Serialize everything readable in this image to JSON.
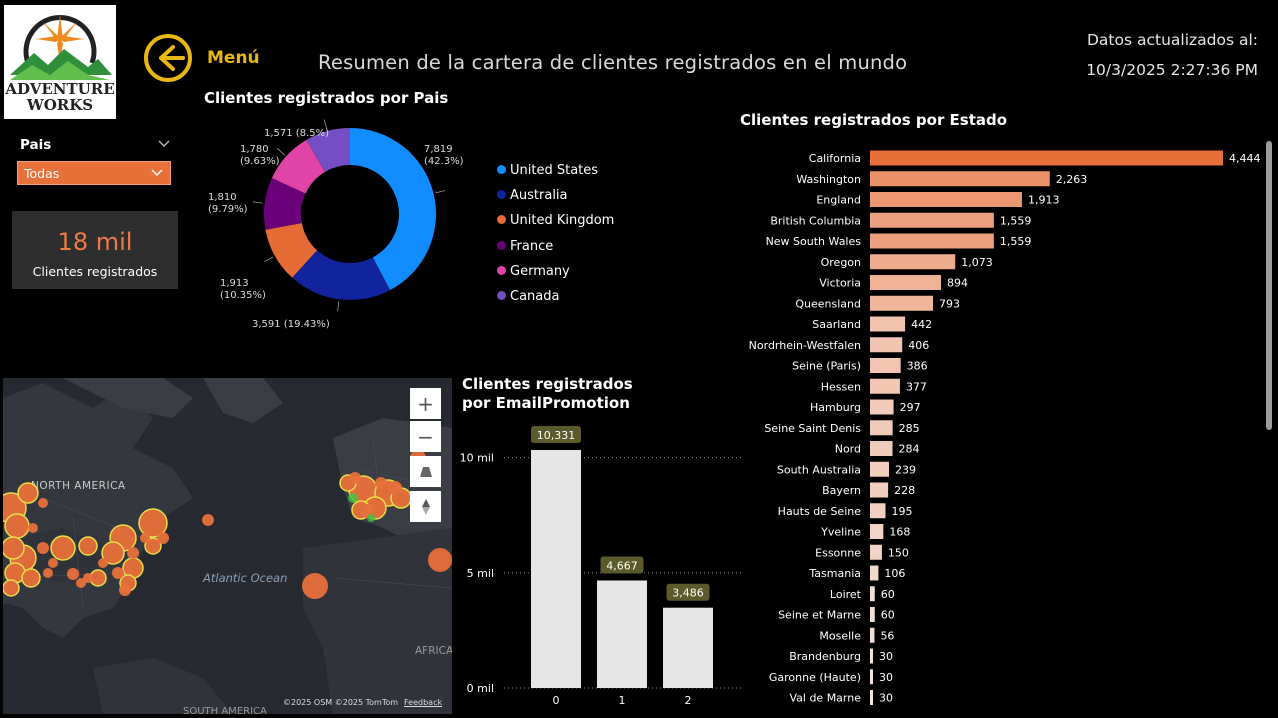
{
  "header": {
    "logo_line1": "ADVENTURE",
    "logo_line2": "WORKS",
    "menu_label": "Menú",
    "title": "Resumen de la cartera de clientes registrados en el mundo",
    "updated_label": "Datos actualizados al:",
    "updated_time": "10/3/2025 2:27:36 PM"
  },
  "filter": {
    "label": "Pais",
    "selected": "Todas",
    "accent": "#e8703a"
  },
  "kpi": {
    "value": "18 mil",
    "label": "Clientes registrados",
    "value_color": "#ef7a45"
  },
  "icons": {
    "back": "arrow-left-circle-icon",
    "dropdown": "chevron-down-icon",
    "zoom_in": "plus-icon",
    "zoom_out": "minus-icon",
    "tilt": "tilt-icon",
    "compass": "compass-icon"
  },
  "map": {
    "labels": {
      "north_america": "NORTH AMERICA",
      "atlantic": "Atlantic Ocean",
      "africa": "AFRICA",
      "south_america": "SOUTH AMERICA"
    },
    "attribution": "©2025 OSM  ©2025 TomTom",
    "feedback": "Feedback",
    "bubble_color": "#e8703a"
  },
  "chart_data": [
    {
      "type": "pie",
      "variant": "donut",
      "title": "Clientes registrados por Pais",
      "categories": [
        "United States",
        "Australia",
        "United Kingdom",
        "France",
        "Germany",
        "Canada"
      ],
      "values": [
        7819,
        3591,
        1913,
        1810,
        1780,
        1571
      ],
      "labels": [
        "7,819 (42.3%)",
        "3,591 (19.43%)",
        "1,913 (10.35%)",
        "1,810 (9.79%)",
        "1,780 (9.63%)",
        "1,571 (8.5%)"
      ],
      "colors": [
        "#118dff",
        "#12239e",
        "#e66c37",
        "#6b007b",
        "#e044a7",
        "#744ec2"
      ],
      "legend": "right"
    },
    {
      "type": "bar",
      "title": "Clientes registrados por EmailPromotion",
      "categories": [
        "0",
        "1",
        "2"
      ],
      "values": [
        10331,
        4667,
        3486
      ],
      "value_labels": [
        "10,331",
        "4,667",
        "3,486"
      ],
      "yticks": [
        "0 mil",
        "5 mil",
        "10 mil"
      ],
      "ytick_values": [
        0,
        5000,
        10000
      ],
      "ylim": [
        0,
        11000
      ],
      "bar_color": "#e6e6e6",
      "label_bg": "#5a5a2a",
      "grid": true
    },
    {
      "type": "bar",
      "orientation": "horizontal",
      "title": "Clientes registrados por Estado",
      "categories": [
        "California",
        "Washington",
        "England",
        "British Columbia",
        "New South Wales",
        "Oregon",
        "Victoria",
        "Queensland",
        "Saarland",
        "Nordrhein-Westfalen",
        "Seine (Paris)",
        "Hessen",
        "Hamburg",
        "Seine Saint Denis",
        "Nord",
        "South Australia",
        "Bayern",
        "Hauts de Seine",
        "Yveline",
        "Essonne",
        "Tasmania",
        "Loiret",
        "Seine et Marne",
        "Moselle",
        "Brandenburg",
        "Garonne (Haute)",
        "Val de Marne"
      ],
      "values": [
        4444,
        2263,
        1913,
        1559,
        1559,
        1073,
        894,
        793,
        442,
        406,
        386,
        377,
        297,
        285,
        284,
        239,
        228,
        195,
        168,
        150,
        106,
        60,
        60,
        56,
        30,
        30,
        30
      ],
      "value_labels": [
        "4,444",
        "2,263",
        "1,913",
        "1,559",
        "1,559",
        "1,073",
        "894",
        "793",
        "442",
        "406",
        "386",
        "377",
        "297",
        "285",
        "284",
        "239",
        "228",
        "195",
        "168",
        "150",
        "106",
        "60",
        "60",
        "56",
        "30",
        "30",
        "30"
      ],
      "color_high": "#e8703a",
      "color_low": "#f5f0ee",
      "xlim": [
        0,
        4444
      ]
    }
  ]
}
